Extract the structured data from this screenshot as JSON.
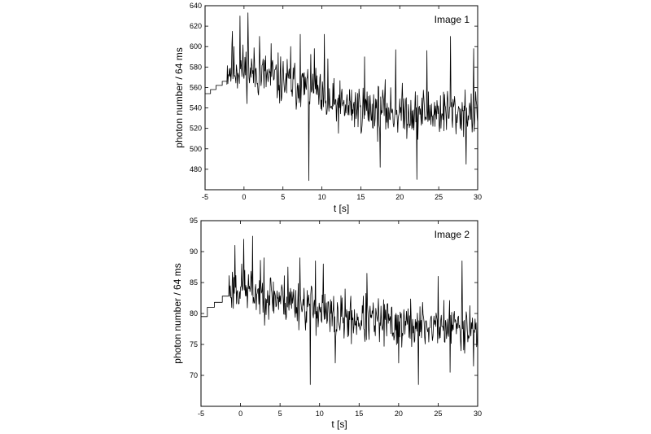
{
  "chart_data": [
    {
      "type": "line",
      "panel_label": "Image 1",
      "xlabel": "t [s]",
      "ylabel": "photon number / 64 ms",
      "xlim": [
        -5,
        30
      ],
      "ylim": [
        460,
        640
      ],
      "xticks": [
        -5,
        0,
        5,
        10,
        15,
        20,
        25,
        30
      ],
      "yticks": [
        480,
        500,
        520,
        540,
        560,
        580,
        600,
        620,
        640
      ],
      "segments": [
        {
          "kind": "step",
          "x": [
            -5,
            -4.3,
            -4.3,
            -3.6,
            -3.6,
            -2.8,
            -2.8,
            -2.2
          ],
          "y": [
            554,
            554,
            558,
            558,
            562,
            562,
            566,
            566
          ]
        },
        {
          "kind": "noise",
          "seed": 11,
          "x_start": -2.2,
          "x_end": 30,
          "n": 500,
          "mean": [
            [
              -2.2,
              578
            ],
            [
              0,
              578
            ],
            [
              5,
              566
            ],
            [
              8,
              560
            ],
            [
              9.5,
              555
            ],
            [
              10,
              543
            ],
            [
              15,
              540
            ],
            [
              20,
              536
            ],
            [
              25,
              536
            ],
            [
              30,
              535
            ]
          ],
          "amplitude": 20,
          "spikes": [
            [
              -1.5,
              615
            ],
            [
              -0.5,
              630
            ],
            [
              0.5,
              633
            ],
            [
              2,
              610
            ],
            [
              3.5,
              603
            ],
            [
              6,
              600
            ],
            [
              7.2,
              612
            ],
            [
              8.3,
              469
            ],
            [
              9,
              598
            ],
            [
              10.3,
              612
            ],
            [
              10.8,
              588
            ],
            [
              15.5,
              590
            ],
            [
              17.5,
              482
            ],
            [
              19.5,
              597
            ],
            [
              22.2,
              470
            ],
            [
              23.5,
              596
            ],
            [
              26.5,
              610
            ],
            [
              28.5,
              485
            ],
            [
              29.5,
              598
            ]
          ]
        }
      ]
    },
    {
      "type": "line",
      "panel_label": "Image 2",
      "xlabel": "t [s]",
      "ylabel": "photon number / 64 ms",
      "xlim": [
        -5,
        30
      ],
      "ylim": [
        65,
        95
      ],
      "xticks": [
        -5,
        0,
        5,
        10,
        15,
        20,
        25,
        30
      ],
      "yticks": [
        70,
        75,
        80,
        85,
        90,
        95
      ],
      "segments": [
        {
          "kind": "step",
          "x": [
            -5,
            -4.2,
            -4.2,
            -3.3,
            -3.3,
            -2.3,
            -2.3,
            -1.5
          ],
          "y": [
            79.5,
            79.5,
            81,
            81,
            81.8,
            81.8,
            82.8,
            82.8
          ]
        },
        {
          "kind": "noise",
          "seed": 23,
          "x_start": -1.5,
          "x_end": 30,
          "n": 480,
          "mean": [
            [
              -1.5,
              84
            ],
            [
              0,
              84
            ],
            [
              5,
              82.5
            ],
            [
              9,
              81
            ],
            [
              10,
              80.5
            ],
            [
              11,
              79.5
            ],
            [
              15,
              79
            ],
            [
              20,
              78.2
            ],
            [
              25,
              78
            ],
            [
              30,
              78
            ]
          ],
          "amplitude": 3.2,
          "spikes": [
            [
              -0.7,
              91
            ],
            [
              0.4,
              92
            ],
            [
              1.5,
              92.5
            ],
            [
              3,
              89
            ],
            [
              6,
              87.5
            ],
            [
              7.5,
              89
            ],
            [
              8.8,
              68.5
            ],
            [
              9.5,
              88.5
            ],
            [
              10.5,
              88
            ],
            [
              12,
              72
            ],
            [
              16,
              86.5
            ],
            [
              20,
              72
            ],
            [
              22.5,
              68.5
            ],
            [
              25,
              86
            ],
            [
              26.5,
              70.5
            ],
            [
              28,
              88.5
            ],
            [
              29.5,
              71.5
            ]
          ]
        }
      ]
    }
  ]
}
